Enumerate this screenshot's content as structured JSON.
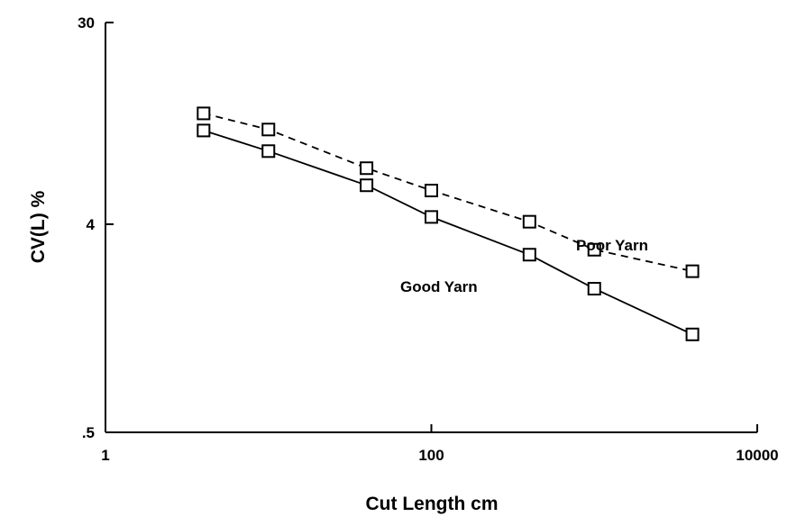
{
  "chart_data": {
    "type": "line",
    "title": "",
    "xlabel": "Cut Length cm",
    "ylabel": "CV(L) %",
    "x_scale": "log",
    "y_scale": "log",
    "xlim": [
      1,
      10000
    ],
    "ylim": [
      0.5,
      30
    ],
    "x_ticks": [
      {
        "value": 1,
        "label": "1"
      },
      {
        "value": 100,
        "label": "100"
      },
      {
        "value": 10000,
        "label": "10000"
      }
    ],
    "y_ticks": [
      {
        "value": 0.5,
        "label": ".5"
      },
      {
        "value": 4,
        "label": "4"
      },
      {
        "value": 30,
        "label": "30"
      }
    ],
    "grid": false,
    "legend": "none",
    "series": [
      {
        "name": "Poor Yarn",
        "line_style": "dashed",
        "marker": "open-square",
        "color": "#000000",
        "x": [
          4,
          10,
          40,
          100,
          400,
          1000,
          4000
        ],
        "y": [
          12.1,
          10.3,
          7.0,
          5.6,
          4.1,
          3.1,
          2.5
        ]
      },
      {
        "name": "Good Yarn",
        "line_style": "solid",
        "marker": "open-square",
        "color": "#000000",
        "x": [
          4,
          10,
          40,
          100,
          400,
          1000,
          4000
        ],
        "y": [
          10.2,
          8.3,
          5.9,
          4.3,
          2.95,
          2.1,
          1.33
        ]
      }
    ],
    "annotations": [
      {
        "text": "Poor Yarn",
        "series": "Poor Yarn"
      },
      {
        "text": "Good Yarn",
        "series": "Good Yarn"
      }
    ]
  }
}
